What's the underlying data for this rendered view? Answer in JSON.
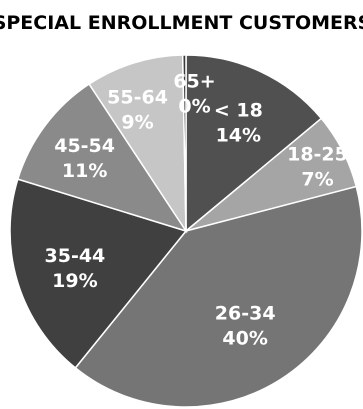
{
  "chart_data": {
    "type": "pie",
    "title": "SPECIAL ENROLLMENT CUSTOMERS",
    "start_angle_deg": 0,
    "direction": "clockwise",
    "slices": [
      {
        "label": "< 18",
        "percent_label": "14%",
        "value": 14,
        "color": "#505050"
      },
      {
        "label": "18-25",
        "percent_label": "7%",
        "value": 7,
        "color": "#a5a5a5"
      },
      {
        "label": "26-34",
        "percent_label": "40%",
        "value": 40,
        "color": "#757575"
      },
      {
        "label": "35-44",
        "percent_label": "19%",
        "value": 19,
        "color": "#404040"
      },
      {
        "label": "45-54",
        "percent_label": "11%",
        "value": 11,
        "color": "#8a8a8a"
      },
      {
        "label": "55-64",
        "percent_label": "9%",
        "value": 9,
        "color": "#c6c6c6"
      },
      {
        "label": "65+",
        "percent_label": "0%",
        "value": 0.3,
        "color": "#3a3a3a"
      }
    ]
  }
}
